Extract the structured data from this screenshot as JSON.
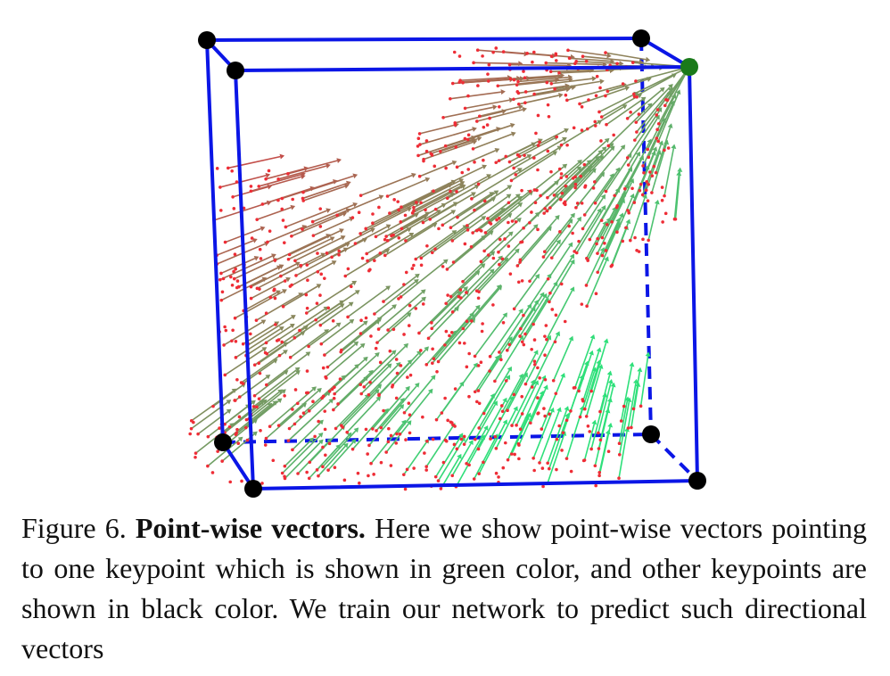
{
  "figure": {
    "box_color": "#0b16e6",
    "target_keypoint_color": "#1a7a1a",
    "other_keypoint_color": "#000000",
    "point_color": "#ee2d36",
    "vector_color_near": "#e8283c",
    "vector_color_far": "#2ee07a"
  },
  "caption": {
    "label": "Figure 6.",
    "title": "Point-wise vectors.",
    "text": "Here we show point-wise vectors pointing to one keypoint which is shown in green color, and other keypoints are shown in black color. We train our network to predict such directional vectors"
  }
}
